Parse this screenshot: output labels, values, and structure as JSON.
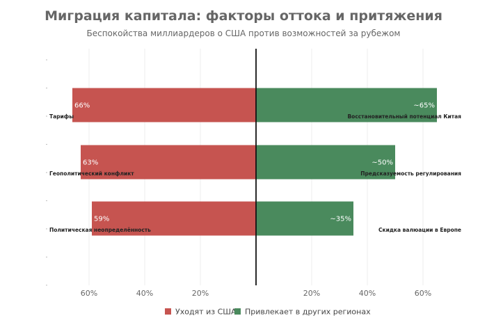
{
  "chart_data": {
    "type": "bar",
    "orientation": "horizontal-diverging",
    "title": "Миграция капитала: факторы оттока и притяжения",
    "subtitle": "Беспокойства миллиардеров о США против возможностей за рубежом",
    "xlim": [
      -75,
      75
    ],
    "x_ticks": [
      {
        "value": -60,
        "label": "60%"
      },
      {
        "value": -40,
        "label": "40%"
      },
      {
        "value": -20,
        "label": "20%"
      },
      {
        "value": 20,
        "label": "20%"
      },
      {
        "value": 40,
        "label": "40%"
      },
      {
        "value": 60,
        "label": "60%"
      }
    ],
    "grid": true,
    "legend_position": "bottom-center",
    "series": [
      {
        "name": "Уходят из США",
        "color": "#c65450",
        "direction": "left",
        "categories": [
          "Тарифы",
          "Геополитический конфликт",
          "Политическая неопределённость"
        ],
        "values": [
          66,
          63,
          59
        ],
        "value_labels": [
          "66%",
          "63%",
          "59%"
        ]
      },
      {
        "name": "Привлекает в других регионах",
        "color": "#4a8a5d",
        "direction": "right",
        "categories": [
          "Восстановительный потенциал Китая",
          "Предсказуемость регулирования",
          "Скидка валюации в Европе"
        ],
        "values": [
          65,
          50,
          35
        ],
        "value_labels": [
          "~65%",
          "~50%",
          "~35%"
        ]
      }
    ]
  }
}
